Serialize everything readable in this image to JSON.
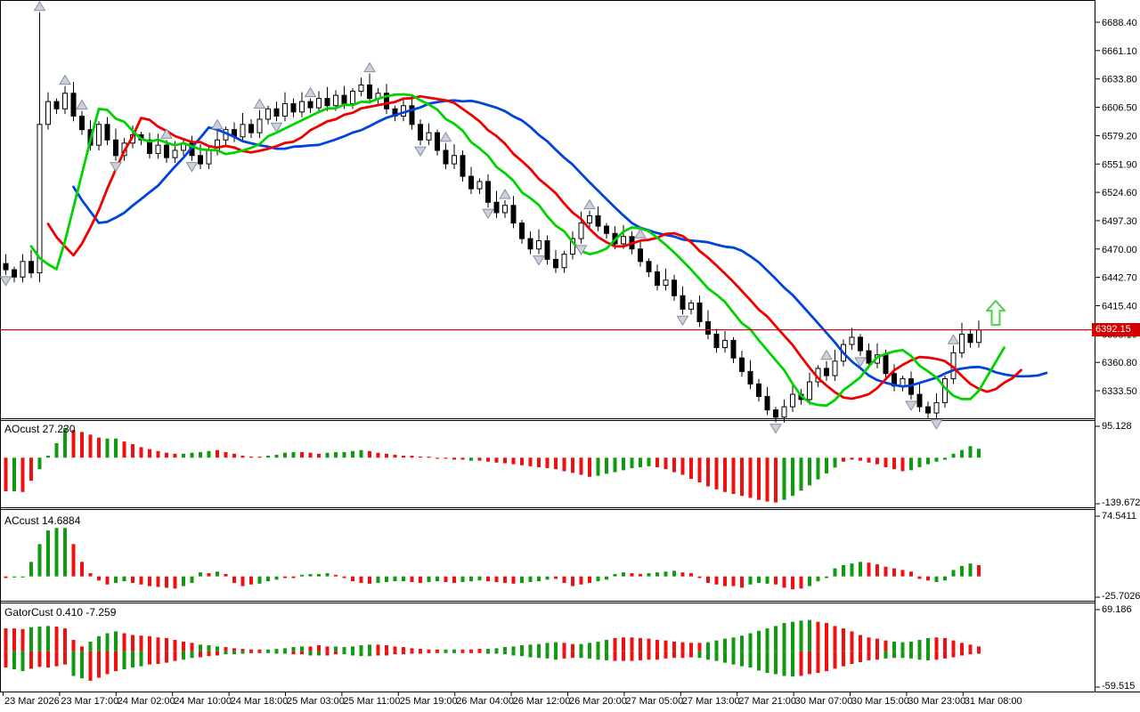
{
  "price_axis": {
    "current_price": "6392.15",
    "labels": [
      "6688.40",
      "6661.10",
      "6633.80",
      "6606.50",
      "6579.20",
      "6551.90",
      "6524.60",
      "6497.30",
      "6470.00",
      "6442.70",
      "6415.40",
      "6388.10",
      "6360.80",
      "6333.50"
    ]
  },
  "time_axis": {
    "labels": [
      "23 Mar 2026",
      "23 Mar 17:00",
      "24 Mar 02:00",
      "24 Mar 10:00",
      "24 Mar 18:00",
      "25 Mar 03:00",
      "25 Mar 11:00",
      "25 Mar 19:00",
      "26 Mar 04:00",
      "26 Mar 12:00",
      "26 Mar 20:00",
      "27 Mar 05:00",
      "27 Mar 13:00",
      "27 Mar 21:00",
      "30 Mar 07:00",
      "30 Mar 15:00",
      "30 Mar 23:00",
      "31 Mar 08:00"
    ]
  },
  "colors": {
    "bull": "#ffffff",
    "bear": "#000000",
    "candle_stroke": "#000000",
    "hist_green": "#0f9a0f",
    "hist_red": "#ee1010",
    "ma_jaw": "#0044dd",
    "ma_teeth": "#ee0000",
    "ma_lips": "#00d400",
    "price_line": "#cc0000",
    "badge_bg": "#d40000",
    "fractal_fill": "#ccd0dc",
    "fractal_stroke": "#8890a0",
    "buy_arrow": "#55cc55",
    "buy_arrow_fill": "#f4fff4",
    "border": "#000000"
  },
  "chart_data": {
    "main": {
      "type": "candlestick",
      "axis": {
        "top_price": 6688.4,
        "label_step": 27.3,
        "min_label": 6333.5
      },
      "price_line": 6392.15,
      "pre_closes": [
        6620,
        6610,
        6600,
        6590,
        6575,
        6560,
        6545,
        6530,
        6515,
        6500,
        6488,
        6470,
        6455
      ],
      "closes": [
        6450,
        6443,
        6458,
        6447,
        6590,
        6612,
        6605,
        6620,
        6598,
        6585,
        6570,
        6590,
        6575,
        6560,
        6572,
        6580,
        6575,
        6562,
        6570,
        6558,
        6565,
        6572,
        6560,
        6552,
        6565,
        6575,
        6585,
        6578,
        6590,
        6582,
        6595,
        6605,
        6598,
        6610,
        6602,
        6612,
        6606,
        6615,
        6608,
        6618,
        6610,
        6622,
        6628,
        6615,
        6620,
        6605,
        6598,
        6608,
        6590,
        6575,
        6582,
        6565,
        6552,
        6560,
        6540,
        6528,
        6535,
        6515,
        6505,
        6512,
        6495,
        6480,
        6470,
        6478,
        6460,
        6452,
        6465,
        6480,
        6495,
        6502,
        6492,
        6485,
        6475,
        6482,
        6470,
        6458,
        6448,
        6435,
        6440,
        6425,
        6412,
        6418,
        6400,
        6388,
        6375,
        6382,
        6365,
        6352,
        6340,
        6328,
        6315,
        6308,
        6318,
        6330,
        6325,
        6342,
        6355,
        6348,
        6362,
        6378,
        6385,
        6372,
        6360,
        6368,
        6350,
        6338,
        6345,
        6330,
        6318,
        6312,
        6322,
        6345,
        6370,
        6388,
        6380,
        6392
      ],
      "special_bars": {
        "4": {
          "high": 6698,
          "low": 6438
        }
      },
      "alligator": [
        {
          "name": "jaw",
          "period": 13,
          "shift": 8
        },
        {
          "name": "teeth",
          "period": 8,
          "shift": 5
        },
        {
          "name": "lips",
          "period": 5,
          "shift": 3
        }
      ],
      "fractals_up": [
        4,
        7,
        9,
        19,
        25,
        30,
        36,
        43,
        52,
        59,
        69,
        75,
        97,
        112
      ],
      "fractals_down": [
        0,
        13,
        22,
        32,
        49,
        57,
        63,
        68,
        80,
        91,
        101,
        107,
        110
      ],
      "buy_marker": {
        "bar_index": 117,
        "price": 6408
      }
    },
    "ao": {
      "type": "bar",
      "title": "AOcust 27.230",
      "axis_max": 95.128,
      "axis_min": -139.672,
      "axis_max_label": "95.128",
      "axis_min_label": "-139.672",
      "values": [
        -102,
        -102,
        -104,
        -70,
        -35,
        6,
        44,
        90,
        84,
        78,
        70,
        61,
        58,
        58,
        49,
        41,
        32,
        26,
        20,
        15,
        12,
        12,
        15,
        17,
        20,
        23,
        17,
        12,
        6,
        3,
        3,
        6,
        9,
        15,
        17,
        17,
        15,
        12,
        15,
        17,
        17,
        20,
        23,
        20,
        15,
        12,
        9,
        6,
        6,
        3,
        3,
        -3,
        -3,
        -6,
        -6,
        -9,
        -9,
        -12,
        -15,
        -17,
        -20,
        -23,
        -26,
        -29,
        -32,
        -35,
        -41,
        -46,
        -52,
        -58,
        -55,
        -49,
        -44,
        -38,
        -32,
        -29,
        -26,
        -29,
        -35,
        -44,
        -52,
        -64,
        -75,
        -87,
        -96,
        -104,
        -110,
        -116,
        -122,
        -128,
        -133,
        -136,
        -128,
        -116,
        -100,
        -84,
        -66,
        -48,
        -30,
        -12,
        -6,
        -9,
        -15,
        -20,
        -29,
        -35,
        -41,
        -38,
        -29,
        -20,
        -12,
        -6,
        12,
        23,
        35,
        27
      ],
      "colors": [
        "rgrrggggrr",
        "rrggrrrrrr",
        "rggggrrrrr",
        "rggggrrrgg",
        "gggrrrrrrr",
        "rrrrrgrrrr",
        "rrrrrrrrrr",
        "gggggggrrr",
        "rrrrrrrrrr",
        "rrgggggggr",
        "rrrrrrrggg",
        "gggggg"
      ]
    },
    "ac": {
      "type": "bar",
      "title": "ACcust 14.6884",
      "axis_max": 74.5411,
      "axis_min": -25.7026,
      "axis_max_label": "74.5411",
      "axis_min_label": "-25.7026",
      "values": [
        -2,
        -1,
        -1,
        18,
        40,
        57,
        60,
        60,
        40,
        18,
        4,
        -5,
        -10,
        -8,
        -6,
        -8,
        -10,
        -12,
        -13,
        -14,
        -15,
        -12,
        -8,
        5,
        4,
        6,
        3,
        -8,
        -12,
        -10,
        -9,
        -6,
        -4,
        -2,
        -2,
        2,
        3,
        3,
        4,
        2,
        -2,
        -6,
        -8,
        -9,
        -8,
        -7,
        -6,
        -6,
        -7,
        -8,
        -7,
        -6,
        -7,
        -8,
        -7,
        -6,
        -5,
        -6,
        -7,
        -8,
        -9,
        -8,
        -7,
        -6,
        -4,
        -3,
        -8,
        -12,
        -10,
        -8,
        -6,
        -4,
        3,
        5,
        4,
        3,
        4,
        5,
        6,
        7,
        5,
        4,
        -2,
        -8,
        -10,
        -12,
        -12,
        -14,
        -10,
        -8,
        -9,
        -10,
        -14,
        -16,
        -15,
        -12,
        -6,
        -2,
        10,
        14,
        16,
        18,
        17,
        15,
        12,
        10,
        8,
        6,
        -3,
        -5,
        -7,
        -5,
        8,
        13,
        16,
        14
      ],
      "colors": [
        "rgggggggrr",
        "rrrggrrrrr",
        "rgggrgrrrr",
        "gggrrggggr",
        "rrrrggggrr",
        "ggrrgggrrr",
        "rggggrrrrr",
        "ggggrrgggg",
        "rrrrrrrrgg",
        "grrrrggggg",
        "ggrrrrrrrr",
        "gggggr"
      ]
    },
    "gator": {
      "type": "double_bar",
      "title": "GatorCust 0.410 -7.259",
      "axis_max": 69.186,
      "axis_min": -59.515,
      "axis_max_label": "69.186",
      "axis_min_label": "-59.515",
      "up_values": [
        38,
        38,
        37,
        40,
        41,
        42,
        41,
        38,
        19,
        8,
        16,
        25,
        30,
        33,
        30,
        27,
        26,
        25,
        23,
        22,
        19,
        16,
        14,
        11,
        10,
        8,
        7,
        5,
        4,
        3,
        3,
        3,
        4,
        5,
        7,
        8,
        8,
        10,
        8,
        8,
        7,
        8,
        10,
        11,
        11,
        10,
        8,
        7,
        5,
        4,
        3,
        3,
        3,
        3,
        3,
        3,
        4,
        4,
        5,
        7,
        8,
        10,
        11,
        12,
        14,
        15,
        14,
        12,
        12,
        14,
        16,
        19,
        22,
        23,
        23,
        22,
        21,
        19,
        18,
        16,
        15,
        14,
        14,
        15,
        18,
        21,
        23,
        26,
        30,
        34,
        38,
        42,
        47,
        49,
        51,
        52,
        49,
        47,
        42,
        38,
        33,
        27,
        23,
        21,
        18,
        16,
        15,
        16,
        19,
        22,
        23,
        22,
        18,
        14,
        11,
        8
      ],
      "up_colors": [
        "rrrgggrrrr",
        "ggggrrrrrr",
        "rrrgggrrrr",
        "rgggggrrrg",
        "ggggrrrrrr",
        "rrggrrrggg",
        "ggggggrrgg",
        "ggrrrrrrrr",
        "rrrggggggg",
        "ggggggrrrr",
        "rrrrrggggg",
        "rrrrrr"
      ],
      "down_values": [
        27,
        30,
        33,
        29,
        26,
        27,
        25,
        22,
        41,
        45,
        49,
        44,
        38,
        33,
        30,
        27,
        25,
        22,
        21,
        19,
        16,
        14,
        11,
        10,
        8,
        7,
        5,
        5,
        4,
        3,
        3,
        3,
        4,
        4,
        5,
        5,
        7,
        7,
        7,
        5,
        5,
        7,
        8,
        8,
        7,
        7,
        5,
        5,
        4,
        4,
        3,
        3,
        3,
        3,
        3,
        3,
        3,
        4,
        4,
        5,
        7,
        8,
        10,
        11,
        12,
        14,
        12,
        11,
        11,
        12,
        14,
        15,
        16,
        16,
        16,
        15,
        14,
        14,
        12,
        11,
        11,
        10,
        11,
        14,
        16,
        19,
        22,
        25,
        27,
        32,
        36,
        38,
        41,
        42,
        41,
        38,
        36,
        33,
        29,
        25,
        21,
        18,
        15,
        14,
        12,
        11,
        11,
        12,
        14,
        15,
        14,
        12,
        10,
        7,
        5,
        4
      ],
      "down_colors": [
        "rggrrrrrgg",
        "rrrrgggrrr",
        "rggrrrgggr",
        "rgggrrggrr",
        "ggggrrrrrr",
        "rrggrrrggg",
        "ggggggrrgg",
        "ggrrrrrrrr",
        "rrgggggggg",
        "ggggrrrrrr",
        "rrrrgggggg",
        "rrrrrr"
      ]
    }
  }
}
